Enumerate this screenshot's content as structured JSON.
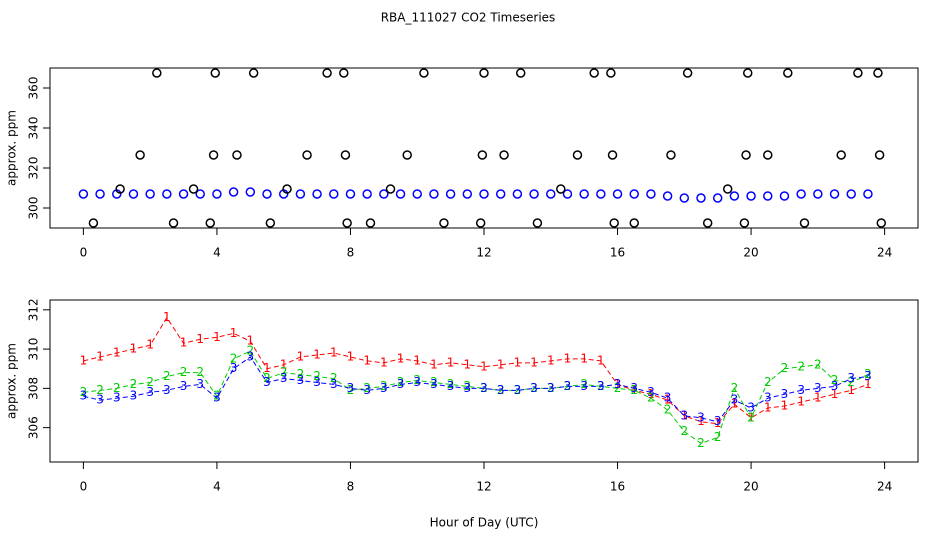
{
  "title": "RBA_111027  CO2 Timeseries",
  "chart_data": [
    {
      "type": "scatter",
      "ylabel": "approx. ppm",
      "xlim": [
        -1,
        25
      ],
      "xticks": [
        0,
        4,
        8,
        12,
        16,
        20,
        24
      ],
      "ylim": [
        290,
        370
      ],
      "yticks": [
        300,
        320,
        340,
        360
      ],
      "series": [
        {
          "color": "#0000ff",
          "x": [
            0,
            0.5,
            1,
            1.5,
            2,
            2.5,
            3,
            3.5,
            4,
            4.5,
            5,
            5.5,
            6,
            6.5,
            7,
            7.5,
            8,
            8.5,
            9,
            9.5,
            10,
            10.5,
            11,
            11.5,
            12,
            12.5,
            13,
            13.5,
            14,
            14.5,
            15,
            15.5,
            16,
            16.5,
            17,
            17.5,
            18,
            18.5,
            19,
            19.5,
            20,
            20.5,
            21,
            21.5,
            22,
            22.5,
            23,
            23.5
          ],
          "values": [
            307,
            307,
            307,
            307,
            307,
            307,
            307,
            307,
            307,
            308,
            308,
            307,
            307,
            307,
            307,
            307,
            307,
            307,
            307,
            307,
            307,
            307,
            307,
            307,
            307,
            307,
            307,
            307,
            307,
            307,
            307,
            307,
            307,
            307,
            307,
            306,
            305,
            305,
            305,
            306,
            306,
            306,
            306,
            307,
            307,
            307,
            307,
            307
          ]
        },
        {
          "color": "#000000",
          "x": [
            0.3,
            1.1,
            1.7,
            2.2,
            2.7,
            3.3,
            3.8,
            3.9,
            3.95,
            4.6,
            5.1,
            5.6,
            6.1,
            6.7,
            7.3,
            7.8,
            7.85,
            7.9,
            8.6,
            9.2,
            9.7,
            10.2,
            10.8,
            11.9,
            11.95,
            12.0,
            12.6,
            13.1,
            13.6,
            14.3,
            14.8,
            15.3,
            15.8,
            15.85,
            15.9,
            16.5,
            17.6,
            18.1,
            18.7,
            19.3,
            19.8,
            19.85,
            19.9,
            20.5,
            21.1,
            21.6,
            22.7,
            23.2,
            23.8,
            23.85,
            23.9
          ],
          "values": [
            292.5,
            309.5,
            326.5,
            367.5,
            292.5,
            309.5,
            292.5,
            326.5,
            367.5,
            326.5,
            367.5,
            292.5,
            309.5,
            326.5,
            367.5,
            367.5,
            326.5,
            292.5,
            292.5,
            309.5,
            326.5,
            367.5,
            292.5,
            292.5,
            326.5,
            367.5,
            326.5,
            367.5,
            292.5,
            309.5,
            326.5,
            367.5,
            367.5,
            326.5,
            292.5,
            292.5,
            326.5,
            367.5,
            292.5,
            309.5,
            292.5,
            326.5,
            367.5,
            326.5,
            367.5,
            292.5,
            326.5,
            367.5,
            367.5,
            326.5,
            292.5
          ]
        }
      ]
    },
    {
      "type": "line",
      "ylabel": "approx. ppm",
      "xlabel": "Hour of Day (UTC)",
      "xlim": [
        -1,
        25
      ],
      "xticks": [
        0,
        4,
        8,
        12,
        16,
        20,
        24
      ],
      "ylim": [
        304.25,
        312.5
      ],
      "yticks": [
        306,
        308,
        310,
        312
      ],
      "x": [
        0,
        0.5,
        1,
        1.5,
        2,
        2.5,
        3,
        3.5,
        4,
        4.5,
        5,
        5.5,
        6,
        6.5,
        7,
        7.5,
        8,
        8.5,
        9,
        9.5,
        10,
        10.5,
        11,
        11.5,
        12,
        12.5,
        13,
        13.5,
        14,
        14.5,
        15,
        15.5,
        16,
        16.5,
        17,
        17.5,
        18,
        18.5,
        19,
        19.5,
        20,
        20.5,
        21,
        21.5,
        22,
        22.5,
        23,
        23.5
      ],
      "series": [
        {
          "symbol": "1",
          "color": "#ff0000",
          "values": [
            309.4,
            309.6,
            309.8,
            310.0,
            310.2,
            311.6,
            310.3,
            310.5,
            310.6,
            310.8,
            310.4,
            309.0,
            309.2,
            309.6,
            309.7,
            309.8,
            309.6,
            309.4,
            309.3,
            309.5,
            309.4,
            309.2,
            309.3,
            309.2,
            309.1,
            309.2,
            309.3,
            309.3,
            309.4,
            309.5,
            309.5,
            309.4,
            308.2,
            307.9,
            307.7,
            307.4,
            306.6,
            306.3,
            306.2,
            307.2,
            306.5,
            307.0,
            307.1,
            307.3,
            307.5,
            307.7,
            307.9,
            308.2
          ]
        },
        {
          "symbol": "2",
          "color": "#00cc00",
          "values": [
            307.8,
            307.9,
            308.0,
            308.2,
            308.3,
            308.6,
            308.8,
            308.8,
            307.6,
            309.5,
            309.9,
            308.5,
            308.8,
            308.7,
            308.6,
            308.5,
            307.9,
            308.0,
            308.1,
            308.3,
            308.4,
            308.3,
            308.2,
            308.1,
            308.0,
            307.9,
            307.9,
            308.0,
            308.0,
            308.1,
            308.2,
            308.1,
            308.0,
            307.9,
            307.5,
            306.9,
            305.8,
            305.2,
            305.5,
            308.0,
            306.5,
            308.3,
            309.0,
            309.1,
            309.2,
            308.4,
            308.3,
            308.7
          ]
        },
        {
          "symbol": "3",
          "color": "#0000ff",
          "values": [
            307.6,
            307.4,
            307.5,
            307.6,
            307.8,
            307.9,
            308.1,
            308.2,
            307.5,
            309.0,
            309.6,
            308.3,
            308.5,
            308.4,
            308.3,
            308.2,
            308.0,
            307.9,
            308.0,
            308.2,
            308.3,
            308.2,
            308.1,
            308.0,
            308.0,
            307.9,
            307.9,
            308.0,
            308.0,
            308.1,
            308.1,
            308.1,
            308.2,
            308.0,
            307.8,
            307.5,
            306.6,
            306.5,
            306.3,
            307.4,
            307.0,
            307.5,
            307.7,
            307.9,
            308.0,
            308.1,
            308.5,
            308.6
          ]
        }
      ]
    }
  ]
}
